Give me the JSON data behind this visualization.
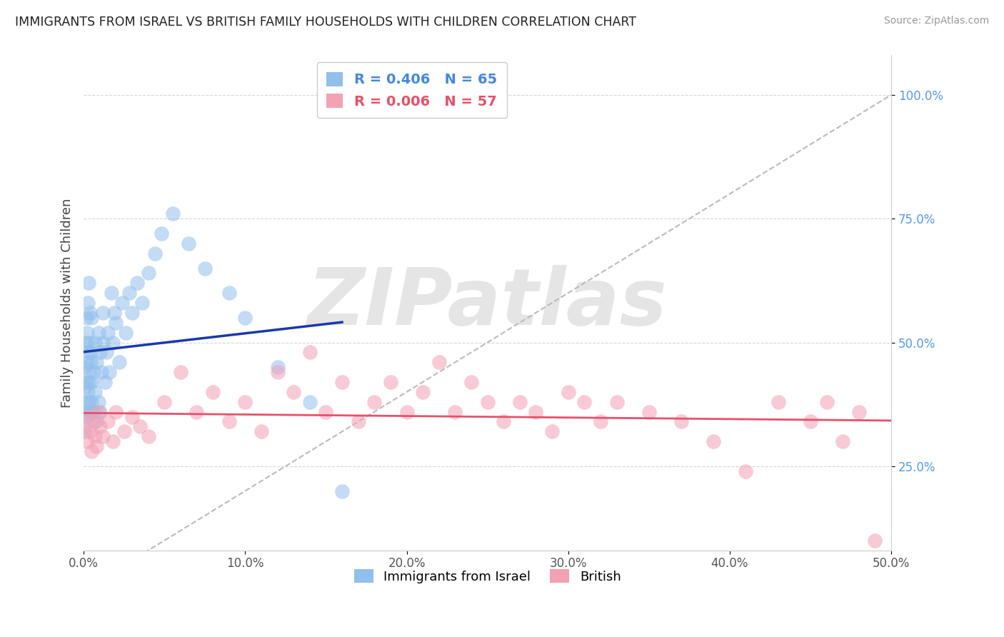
{
  "title": "IMMIGRANTS FROM ISRAEL VS BRITISH FAMILY HOUSEHOLDS WITH CHILDREN CORRELATION CHART",
  "source": "Source: ZipAtlas.com",
  "ylabel": "Family Households with Children",
  "xlim": [
    0.0,
    0.5
  ],
  "ylim": [
    0.08,
    1.08
  ],
  "xticks": [
    0.0,
    0.1,
    0.2,
    0.3,
    0.4,
    0.5
  ],
  "yticks": [
    0.25,
    0.5,
    0.75,
    1.0
  ],
  "xticklabels": [
    "0.0%",
    "10.0%",
    "20.0%",
    "30.0%",
    "40.0%",
    "50.0%"
  ],
  "yticklabels": [
    "25.0%",
    "50.0%",
    "75.0%",
    "100.0%"
  ],
  "legend_labels": [
    "Immigrants from Israel",
    "British"
  ],
  "R_israel": 0.406,
  "N_israel": 65,
  "R_british": 0.006,
  "N_british": 57,
  "blue_color": "#92bfec",
  "pink_color": "#f4a0b5",
  "line_blue": "#1a3aaa",
  "line_pink": "#e8506a",
  "dash_color": "#bbbbbb",
  "watermark": "ZIPatlas",
  "watermark_color": "#cccccc",
  "background_color": "#ffffff",
  "israel_x": [
    0.0005,
    0.0008,
    0.001,
    0.001,
    0.0012,
    0.0013,
    0.0015,
    0.0015,
    0.0018,
    0.002,
    0.002,
    0.0022,
    0.0025,
    0.0025,
    0.0028,
    0.003,
    0.003,
    0.0032,
    0.0035,
    0.004,
    0.004,
    0.0042,
    0.0045,
    0.005,
    0.005,
    0.005,
    0.006,
    0.006,
    0.007,
    0.007,
    0.008,
    0.008,
    0.009,
    0.009,
    0.01,
    0.01,
    0.011,
    0.012,
    0.012,
    0.013,
    0.014,
    0.015,
    0.016,
    0.017,
    0.018,
    0.019,
    0.02,
    0.022,
    0.024,
    0.026,
    0.028,
    0.03,
    0.033,
    0.036,
    0.04,
    0.044,
    0.048,
    0.055,
    0.065,
    0.075,
    0.09,
    0.1,
    0.12,
    0.14,
    0.16
  ],
  "israel_y": [
    0.32,
    0.36,
    0.41,
    0.45,
    0.38,
    0.5,
    0.35,
    0.42,
    0.55,
    0.48,
    0.52,
    0.46,
    0.4,
    0.58,
    0.44,
    0.38,
    0.62,
    0.5,
    0.42,
    0.36,
    0.56,
    0.46,
    0.48,
    0.38,
    0.42,
    0.55,
    0.36,
    0.44,
    0.4,
    0.5,
    0.34,
    0.46,
    0.38,
    0.52,
    0.36,
    0.48,
    0.44,
    0.5,
    0.56,
    0.42,
    0.48,
    0.52,
    0.44,
    0.6,
    0.5,
    0.56,
    0.54,
    0.46,
    0.58,
    0.52,
    0.6,
    0.56,
    0.62,
    0.58,
    0.64,
    0.68,
    0.72,
    0.76,
    0.7,
    0.65,
    0.6,
    0.55,
    0.45,
    0.38,
    0.2
  ],
  "british_x": [
    0.001,
    0.002,
    0.003,
    0.004,
    0.005,
    0.006,
    0.007,
    0.008,
    0.009,
    0.01,
    0.012,
    0.015,
    0.018,
    0.02,
    0.025,
    0.03,
    0.035,
    0.04,
    0.05,
    0.06,
    0.07,
    0.08,
    0.09,
    0.1,
    0.11,
    0.12,
    0.13,
    0.14,
    0.15,
    0.16,
    0.17,
    0.18,
    0.19,
    0.2,
    0.21,
    0.22,
    0.23,
    0.24,
    0.25,
    0.26,
    0.27,
    0.28,
    0.29,
    0.3,
    0.31,
    0.32,
    0.33,
    0.35,
    0.37,
    0.39,
    0.41,
    0.43,
    0.45,
    0.46,
    0.47,
    0.48,
    0.49
  ],
  "british_y": [
    0.33,
    0.3,
    0.35,
    0.32,
    0.28,
    0.34,
    0.31,
    0.29,
    0.36,
    0.33,
    0.31,
    0.34,
    0.3,
    0.36,
    0.32,
    0.35,
    0.33,
    0.31,
    0.38,
    0.44,
    0.36,
    0.4,
    0.34,
    0.38,
    0.32,
    0.44,
    0.4,
    0.48,
    0.36,
    0.42,
    0.34,
    0.38,
    0.42,
    0.36,
    0.4,
    0.46,
    0.36,
    0.42,
    0.38,
    0.34,
    0.38,
    0.36,
    0.32,
    0.4,
    0.38,
    0.34,
    0.38,
    0.36,
    0.34,
    0.3,
    0.24,
    0.38,
    0.34,
    0.38,
    0.3,
    0.36,
    0.1
  ]
}
